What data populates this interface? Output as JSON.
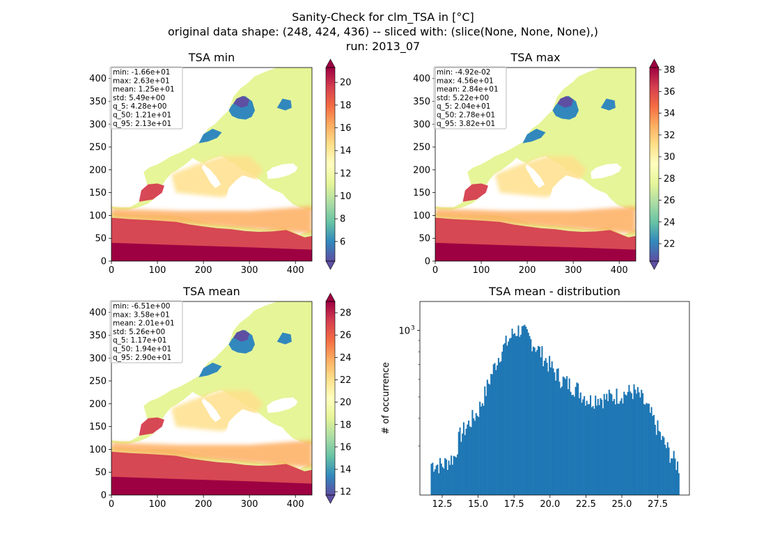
{
  "suptitle": {
    "line1": "Sanity-Check for clm_TSA in [°C]",
    "line2": "original data shape: (248, 424, 436) -- sliced with: (slice(None, None, None),)",
    "line3": "run: 2013_07"
  },
  "colors": {
    "cmap": [
      "#5e4fa2",
      "#3288bd",
      "#66c2a5",
      "#abdda4",
      "#e6f598",
      "#ffffbf",
      "#fee08b",
      "#fdae61",
      "#f46d43",
      "#d53e4f",
      "#9e0142"
    ],
    "hist_bar": "#1f77b4",
    "stats_box_border": "#bbbbbb"
  },
  "chart_data": [
    {
      "type": "heatmap",
      "title": "TSA min",
      "xlim": [
        0,
        436
      ],
      "ylim": [
        0,
        424
      ],
      "xticks": [
        0,
        100,
        200,
        300,
        400
      ],
      "yticks": [
        0,
        50,
        100,
        150,
        200,
        250,
        300,
        350,
        400
      ],
      "colorbar": {
        "min": 4.28,
        "max": 21.3,
        "ticks": [
          6,
          8,
          10,
          12,
          14,
          16,
          18,
          20
        ],
        "extend": "both",
        "cmap": "Spectral_r"
      },
      "stats": [
        "min: -1.66e+01",
        "max: 2.63e+01",
        "mean: 1.25e+01",
        "std: 5.49e+00",
        "q_5: 4.28e+00",
        "q_50: 1.21e+01",
        "q_95: 2.13e+01"
      ]
    },
    {
      "type": "heatmap",
      "title": "TSA max",
      "xlim": [
        0,
        436
      ],
      "ylim": [
        0,
        424
      ],
      "xticks": [
        0,
        100,
        200,
        300,
        400
      ],
      "yticks": [
        0,
        50,
        100,
        150,
        200,
        250,
        300,
        350,
        400
      ],
      "colorbar": {
        "min": 20.4,
        "max": 38.2,
        "ticks": [
          22,
          24,
          26,
          28,
          30,
          32,
          34,
          36,
          38
        ],
        "extend": "both",
        "cmap": "Spectral_r"
      },
      "stats": [
        "min: -4.92e-02",
        "max: 4.56e+01",
        "mean: 2.84e+01",
        "std: 5.22e+00",
        "q_5: 2.04e+01",
        "q_50: 2.78e+01",
        "q_95: 3.82e+01"
      ]
    },
    {
      "type": "heatmap",
      "title": "TSA mean",
      "xlim": [
        0,
        436
      ],
      "ylim": [
        0,
        424
      ],
      "xticks": [
        0,
        100,
        200,
        300,
        400
      ],
      "yticks": [
        0,
        50,
        100,
        150,
        200,
        250,
        300,
        350,
        400
      ],
      "colorbar": {
        "min": 11.7,
        "max": 29.0,
        "ticks": [
          12,
          14,
          16,
          18,
          20,
          22,
          24,
          26,
          28
        ],
        "extend": "both",
        "cmap": "Spectral_r"
      },
      "stats": [
        "min: -6.51e+00",
        "max: 3.58e+01",
        "mean: 2.01e+01",
        "std: 5.26e+00",
        "q_5: 1.17e+01",
        "q_50: 1.94e+01",
        "q_95: 2.90e+01"
      ]
    },
    {
      "type": "bar",
      "title": "TSA mean - distribution",
      "ylabel": "# of occurrence",
      "yscale": "log",
      "xlim": [
        10.95,
        29.7
      ],
      "ylim": [
        180,
        1350
      ],
      "xticks": [
        12.5,
        15.0,
        17.5,
        20.0,
        22.5,
        25.0,
        27.5
      ],
      "xtick_labels": [
        "12.5",
        "15.0",
        "17.5",
        "20.0",
        "22.5",
        "25.0",
        "27.5"
      ],
      "yticks": [
        1000
      ],
      "ytick_labels": [
        "10",
        "3"
      ],
      "bin_start": 11.7,
      "bin_width": 0.0865,
      "knots_x": [
        11.7,
        12.5,
        13.4,
        13.7,
        14.5,
        15.0,
        15.5,
        16.0,
        16.5,
        17.0,
        17.5,
        17.9,
        18.3,
        18.8,
        19.3,
        19.8,
        20.3,
        20.8,
        21.3,
        21.8,
        22.3,
        22.8,
        23.3,
        23.8,
        24.3,
        24.8,
        25.3,
        25.8,
        26.3,
        26.8,
        27.3,
        27.8,
        28.3,
        28.6,
        29.0
      ],
      "knots_y": [
        250,
        245,
        270,
        330,
        390,
        430,
        520,
        650,
        780,
        880,
        980,
        1010,
        960,
        880,
        800,
        720,
        650,
        600,
        570,
        550,
        510,
        480,
        500,
        490,
        500,
        510,
        520,
        530,
        500,
        440,
        380,
        320,
        280,
        260,
        240
      ]
    }
  ]
}
